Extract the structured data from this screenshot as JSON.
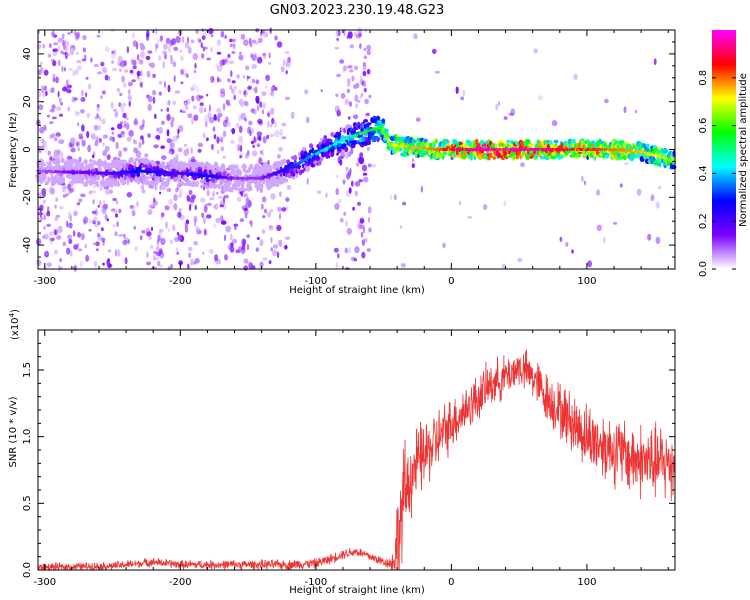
{
  "title": "GN03.2023.230.19.48.G23",
  "chart_data": [
    {
      "type": "heatmap",
      "xlabel": "Height of straight line (km)",
      "ylabel": "Frequency (Hz)",
      "xlim": [
        -305,
        165
      ],
      "ylim": [
        -50,
        50
      ],
      "x_ticks": [
        -300,
        -200,
        -100,
        0,
        100
      ],
      "y_ticks": [
        -40,
        -20,
        0,
        20,
        40
      ],
      "colorbar": {
        "label": "Normalized spectral amplitude",
        "range": [
          0,
          1
        ],
        "ticks": [
          0.0,
          0.2,
          0.4,
          0.6,
          0.8
        ],
        "tick_labels": [
          "0.0",
          "0.2",
          "0.4",
          "0.6",
          "0.8"
        ],
        "colormap": [
          "#ffffff",
          "#7a00ff",
          "#0000ff",
          "#00ffff",
          "#00ff00",
          "#ffff00",
          "#ff0000",
          "#ff00ff"
        ]
      },
      "ridge": {
        "x": [
          -305,
          -250,
          -230,
          -200,
          -180,
          -160,
          -140,
          -120,
          -100,
          -80,
          -70,
          -60,
          -52,
          -45,
          -30,
          -10,
          0,
          20,
          40,
          60,
          80,
          100,
          120,
          140,
          155,
          165
        ],
        "y": [
          -9,
          -10,
          -9,
          -10,
          -11,
          -12,
          -12,
          -8,
          -2,
          4,
          6,
          8,
          9,
          2,
          1,
          0,
          0,
          0,
          0,
          0,
          0,
          0,
          0,
          -1,
          -3,
          -5
        ],
        "peak_amplitude": [
          0.1,
          0.2,
          0.3,
          0.2,
          0.3,
          0.12,
          0.12,
          0.3,
          0.4,
          0.45,
          0.5,
          0.55,
          0.6,
          0.7,
          0.75,
          0.8,
          0.9,
          0.95,
          0.95,
          0.95,
          0.9,
          0.85,
          0.8,
          0.75,
          0.7,
          0.65
        ]
      },
      "grid": false
    },
    {
      "type": "line",
      "xlabel": "Height of straight line (km)",
      "ylabel": "SNR (10 * v/v)",
      "y_multiplier": "(x10",
      "y_multiplier_exp": "4",
      "y_multiplier_close": ")",
      "xlim": [
        -305,
        165
      ],
      "ylim": [
        0,
        1.8
      ],
      "x_ticks": [
        -300,
        -200,
        -100,
        0,
        100
      ],
      "y_ticks": [
        0.0,
        0.5,
        1.0,
        1.5
      ],
      "y_tick_labels": [
        "0.0",
        "0.5",
        "1.0",
        "1.5"
      ],
      "color": "#ee3333",
      "envelope": {
        "x": [
          -305,
          -250,
          -220,
          -200,
          -150,
          -120,
          -100,
          -90,
          -80,
          -70,
          -60,
          -50,
          -43,
          -38,
          -35,
          -30,
          -25,
          -15,
          0,
          15,
          30,
          40,
          50,
          60,
          70,
          80,
          90,
          100,
          110,
          120,
          130,
          140,
          150,
          165
        ],
        "y": [
          0.02,
          0.03,
          0.06,
          0.04,
          0.04,
          0.04,
          0.05,
          0.08,
          0.12,
          0.14,
          0.1,
          0.06,
          0.05,
          0.3,
          0.55,
          0.7,
          0.8,
          0.92,
          1.1,
          1.25,
          1.4,
          1.45,
          1.52,
          1.45,
          1.3,
          1.2,
          1.1,
          1.0,
          0.95,
          0.9,
          0.85,
          0.82,
          0.8,
          0.8
        ]
      },
      "noise": {
        "x": [
          -305,
          -45,
          -38,
          -30,
          0,
          50,
          100,
          165
        ],
        "amplitude": [
          0.03,
          0.04,
          0.45,
          0.3,
          0.2,
          0.15,
          0.25,
          0.3
        ]
      },
      "grid": false
    }
  ]
}
